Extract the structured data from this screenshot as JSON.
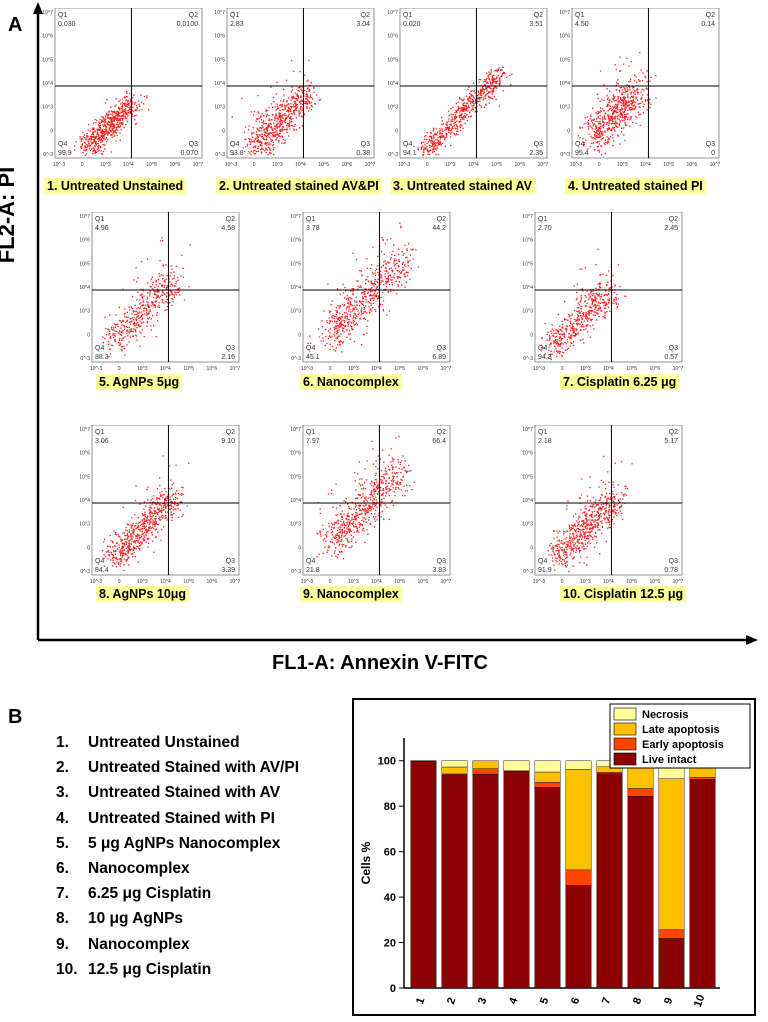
{
  "panelA": {
    "letter": "A",
    "ylabel": "FL2-A: PI",
    "xlabel": "FL1-A: Annexin V-FITC",
    "plots": [
      {
        "caption": "1. Untreated Unstained",
        "q1": "0.030",
        "q2": "0.0100",
        "q3": "0.070",
        "q4": "99.9"
      },
      {
        "caption": "2. Untreated stained AV&PI",
        "q1": "2.83",
        "q2": "3.04",
        "q3": "0.38",
        "q4": "93.8"
      },
      {
        "caption": "3. Untreated stained AV",
        "q1": "0.020",
        "q2": "3.51",
        "q3": "2.35",
        "q4": "94.1"
      },
      {
        "caption": "4. Untreated stained PI",
        "q1": "4.50",
        "q2": "0.14",
        "q3": "0",
        "q4": "95.4"
      },
      {
        "caption": "5.  AgNPs 5μg",
        "q1": "4.96",
        "q2": "4.58",
        "q3": "2.16",
        "q4": "88.3"
      },
      {
        "caption": "6. Nanocomplex",
        "q1": "3.78",
        "q2": "44.2",
        "q3": "6.89",
        "q4": "45.1"
      },
      {
        "caption": "7. Cisplatin 6.25 μg",
        "q1": "2.70",
        "q2": "2.45",
        "q3": "0.57",
        "q4": "94.3"
      },
      {
        "caption": "8. AgNPs 10μg",
        "q1": "3.06",
        "q2": "9.10",
        "q3": "3.39",
        "q4": "84.4"
      },
      {
        "caption": "9. Nanocomplex",
        "q1": "7.97",
        "q2": "66.4",
        "q3": "3.83",
        "q4": "21.8"
      },
      {
        "caption": "10. Cisplatin 12.5 μg",
        "q1": "2.18",
        "q2": "5.17",
        "q3": "0.78",
        "q4": "91.9"
      }
    ],
    "quadrant_labels": {
      "q1": "Q1",
      "q2": "Q2",
      "q3": "Q3",
      "q4": "Q4"
    },
    "axis_ticks": [
      "10^-3",
      "0",
      "10^3",
      "10^4",
      "10^5",
      "10^6",
      "10^7"
    ],
    "dot_color": "#ff1a1a"
  },
  "panelB": {
    "letter": "B",
    "list": [
      {
        "num": "1.",
        "text": "Untreated Unstained"
      },
      {
        "num": "2.",
        "text": "Untreated Stained with AV/PI"
      },
      {
        "num": "3.",
        "text": "Untreated Stained with AV"
      },
      {
        "num": "4.",
        "text": "Untreated Stained with PI"
      },
      {
        "num": "5.",
        "text": "5 μg  AgNPs Nanocomplex"
      },
      {
        "num": "6.",
        "text": "Nanocomplex"
      },
      {
        "num": "7.",
        "text": "6.25 μg Cisplatin"
      },
      {
        "num": "8.",
        "text": "10 μg  AgNPs"
      },
      {
        "num": "9.",
        "text": "Nanocomplex"
      },
      {
        "num": "10.",
        "text": "12.5 μg Cisplatin"
      }
    ]
  },
  "chart_data": {
    "type": "bar",
    "stacked": true,
    "title": "",
    "xlabel": "",
    "ylabel": "Cells %",
    "ylim": [
      0,
      110
    ],
    "yticks": [
      0,
      20,
      40,
      60,
      80,
      100
    ],
    "categories": [
      "1",
      "2",
      "3",
      "4",
      "5",
      "6",
      "7",
      "8",
      "9",
      "10"
    ],
    "series": [
      {
        "name": "Live intact",
        "color": "#8b0000",
        "values": [
          99.9,
          93.8,
          94.1,
          95.4,
          88.3,
          45.1,
          94.3,
          84.4,
          21.8,
          91.9
        ]
      },
      {
        "name": "Early apoptosis",
        "color": "#ff4500",
        "values": [
          0.07,
          0.38,
          2.35,
          0,
          2.16,
          6.89,
          0.57,
          3.39,
          3.83,
          0.78
        ]
      },
      {
        "name": "Late apoptosis",
        "color": "#ffc000",
        "values": [
          0.01,
          3.04,
          3.51,
          0.14,
          4.58,
          44.2,
          2.45,
          9.1,
          66.4,
          5.17
        ]
      },
      {
        "name": "Necrosis",
        "color": "#ffff99",
        "values": [
          0.03,
          2.83,
          0.02,
          4.5,
          4.96,
          3.78,
          2.7,
          3.06,
          7.97,
          2.18
        ]
      }
    ],
    "legend_position": "top-right"
  }
}
